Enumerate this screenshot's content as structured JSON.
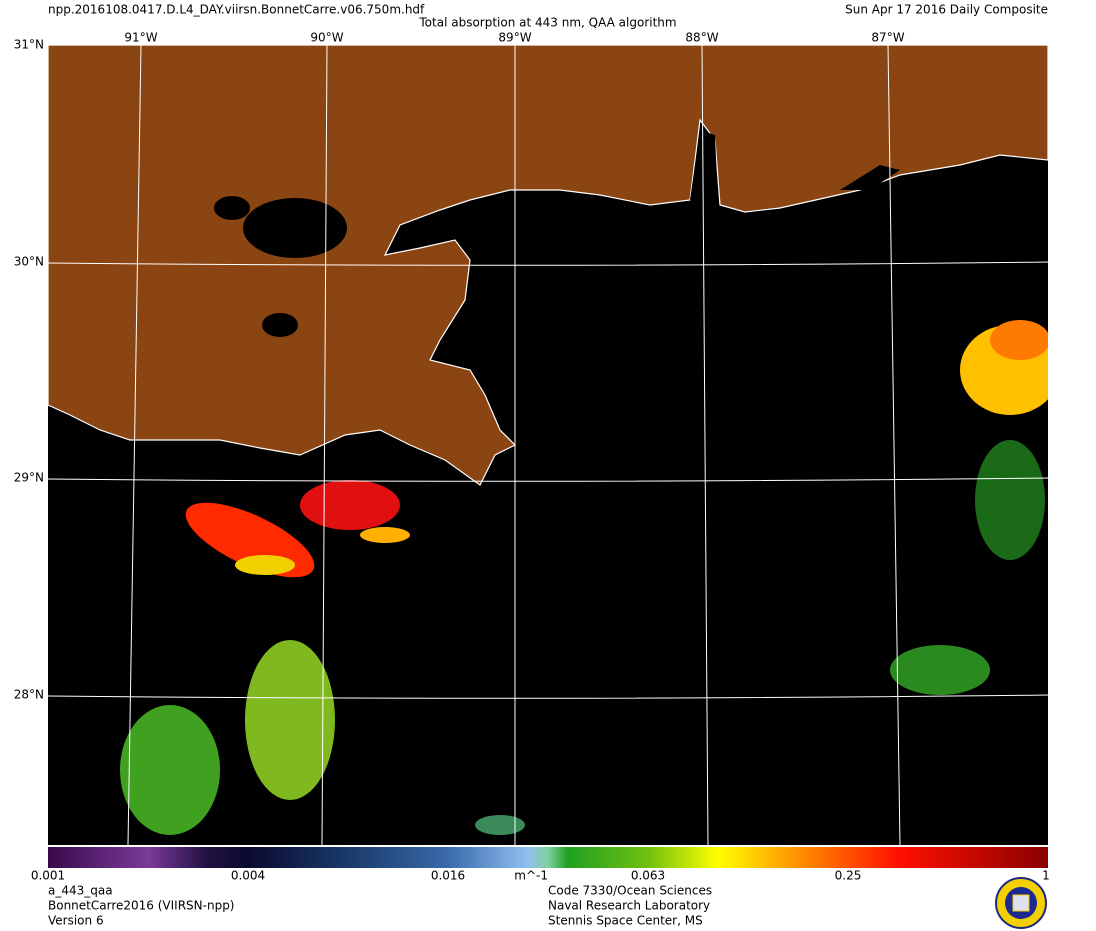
{
  "header": {
    "filename": "npp.2016108.0417.D.L4_DAY.viirsn.BonnetCarre.v06.750m.hdf",
    "title": "Total absorption at 443 nm, QAA algorithm",
    "date": "Sun Apr 17 2016 Daily Composite"
  },
  "map": {
    "lat_labels": [
      "31°N",
      "30°N",
      "29°N",
      "28°N"
    ],
    "lon_labels": [
      "91°W",
      "90°W",
      "89°W",
      "88°W",
      "87°W"
    ]
  },
  "colorbar": {
    "labels": [
      "0.001",
      "0.004",
      "0.016",
      "m^-1",
      "0.063",
      "0.25",
      "1"
    ]
  },
  "footer": {
    "left": [
      "a_443_qaa",
      "BonnetCarre2016 (VIIRSN-npp)",
      "Version 6"
    ],
    "center": [
      "Code 7330/Ocean Sciences",
      "Naval Research Laboratory",
      "Stennis Space Center, MS"
    ]
  }
}
